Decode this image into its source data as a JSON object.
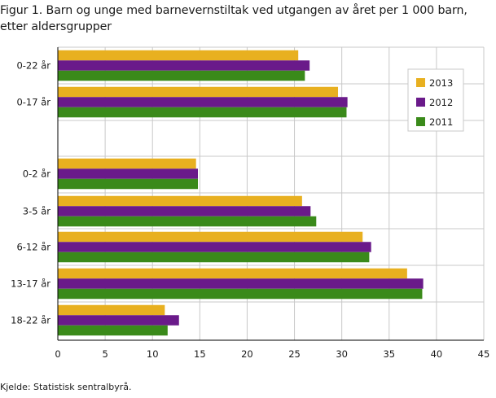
{
  "title_line1": "Figur 1. Barn og unge med barnevernstiltak ved utgangen av året per 1 000 barn,",
  "title_line2": "etter aldersgrupper",
  "source": "Kjelde: Statistisk sentralbyrå.",
  "chart_data": {
    "type": "bar",
    "orientation": "horizontal",
    "title": "Figur 1. Barn og unge med barnevernstiltak ved utgangen av året per 1 000 barn, etter aldersgrupper",
    "xlabel": "",
    "ylabel": "",
    "xlim": [
      0,
      45
    ],
    "xticks": [
      0,
      5,
      10,
      15,
      20,
      25,
      30,
      35,
      40,
      45
    ],
    "grid": "vertical",
    "legend_placement": "top-right",
    "categories": [
      "0-22 år",
      "0-17 år",
      "0-2 år",
      "3-5 år",
      "6-12 år",
      "13-17 år",
      "18-22 år"
    ],
    "series": [
      {
        "name": "2013",
        "color": "#e8b020",
        "values": [
          25.4,
          29.6,
          14.6,
          25.8,
          32.2,
          36.9,
          11.3
        ]
      },
      {
        "name": "2012",
        "color": "#6a1a8a",
        "values": [
          26.6,
          30.6,
          14.8,
          26.7,
          33.1,
          38.6,
          12.8
        ]
      },
      {
        "name": "2011",
        "color": "#3a8a1a",
        "values": [
          26.1,
          30.5,
          14.8,
          27.3,
          32.9,
          38.5,
          11.6
        ]
      }
    ]
  }
}
